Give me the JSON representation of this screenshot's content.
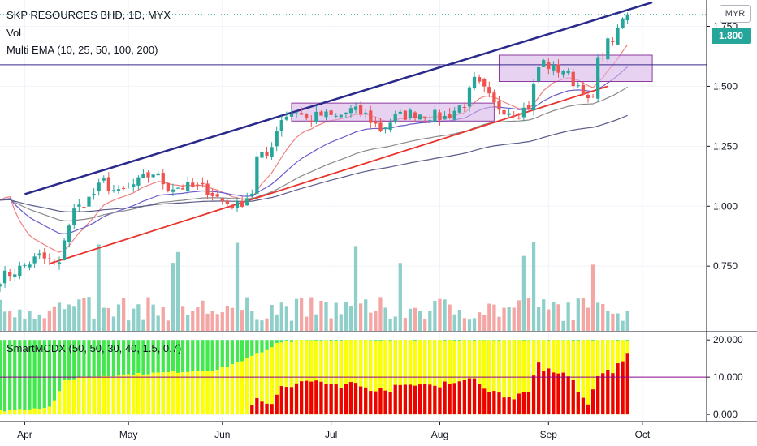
{
  "chart_title": "SKP RESOURCES BHD, 1D, MYX",
  "legend_vol": "Vol",
  "legend_ema": "Multi EMA (10, 25, 50, 100, 200)",
  "legend_indicator": "SmartMCDX (50, 50, 30, 40, 1.5, 0.7)",
  "currency": "MYR",
  "last_price_label": "1.800",
  "colors": {
    "up": "#26a69a",
    "down": "#ef5350",
    "vol_up": "#8fcfc9",
    "vol_down": "#f3a6a4",
    "ema10": "#f08080",
    "ema25": "#6a5acd",
    "ema50": "#8a8a8a",
    "ema100": "#5b5b8a",
    "ema200": "#5f6671",
    "trend_upper": "#2a2a8c",
    "trend_lower": "#e8342c",
    "hline": "#3a2a8c",
    "box_fill": "#d8b4e8",
    "box_border": "#8b3a9e",
    "mcdx_green": "#43e84f",
    "mcdx_yellow": "#ffff00",
    "mcdx_red": "#f00000",
    "mcdx_line": "#8b008b"
  },
  "chart_data": {
    "type": "candlestick",
    "price_axis": {
      "ticks": [
        "1.750",
        "1.500",
        "1.250",
        "1.000",
        "0.750"
      ],
      "values": [
        1.75,
        1.5,
        1.25,
        1.0,
        0.75
      ],
      "range": [
        0.48,
        1.86
      ]
    },
    "indicator_axis": {
      "ticks": [
        "20.000",
        "10.000",
        "0.000"
      ],
      "values": [
        20,
        10,
        0
      ],
      "range": [
        -1.5,
        22
      ]
    },
    "month_labels": [
      "Apr",
      "May",
      "Jun",
      "Jul",
      "Aug",
      "Sep",
      "Oct"
    ],
    "month_start_index": [
      5,
      26,
      45,
      67,
      89,
      111,
      130
    ],
    "x_index_range": [
      0,
      143
    ],
    "bar_count": 128,
    "anchors": [
      [
        0,
        0.7
      ],
      [
        4,
        0.74
      ],
      [
        8,
        0.79
      ],
      [
        12,
        0.75
      ],
      [
        13,
        0.87
      ],
      [
        15,
        0.98
      ],
      [
        18,
        1.03
      ],
      [
        21,
        1.1
      ],
      [
        24,
        1.05
      ],
      [
        28,
        1.1
      ],
      [
        31,
        1.14
      ],
      [
        34,
        1.08
      ],
      [
        38,
        1.08
      ],
      [
        42,
        1.07
      ],
      [
        45,
        1.02
      ],
      [
        48,
        1.0
      ],
      [
        51,
        1.06
      ],
      [
        52,
        1.2
      ],
      [
        54,
        1.21
      ],
      [
        57,
        1.37
      ],
      [
        60,
        1.4
      ],
      [
        62,
        1.36
      ],
      [
        65,
        1.38
      ],
      [
        68,
        1.37
      ],
      [
        71,
        1.4
      ],
      [
        74,
        1.38
      ],
      [
        77,
        1.32
      ],
      [
        80,
        1.37
      ],
      [
        84,
        1.39
      ],
      [
        87,
        1.38
      ],
      [
        90,
        1.37
      ],
      [
        94,
        1.43
      ],
      [
        96,
        1.52
      ],
      [
        98,
        1.48
      ],
      [
        100,
        1.42
      ],
      [
        103,
        1.4
      ],
      [
        105,
        1.39
      ],
      [
        107,
        1.42
      ],
      [
        109,
        1.58
      ],
      [
        110,
        1.6
      ],
      [
        112,
        1.57
      ],
      [
        114,
        1.57
      ],
      [
        116,
        1.52
      ],
      [
        118,
        1.49
      ],
      [
        119,
        1.43
      ],
      [
        120,
        1.45
      ],
      [
        121,
        1.6
      ],
      [
        123,
        1.68
      ],
      [
        124,
        1.7
      ],
      [
        125,
        1.72
      ],
      [
        126,
        1.78
      ],
      [
        127,
        1.8
      ]
    ],
    "last_close": 1.8,
    "mcdx": {
      "red_profile": [
        [
          0,
          0
        ],
        [
          50,
          0
        ],
        [
          52,
          4
        ],
        [
          55,
          3
        ],
        [
          57,
          7
        ],
        [
          60,
          8
        ],
        [
          64,
          9
        ],
        [
          68,
          8
        ],
        [
          72,
          8
        ],
        [
          76,
          7
        ],
        [
          80,
          7
        ],
        [
          84,
          8
        ],
        [
          88,
          8
        ],
        [
          92,
          9
        ],
        [
          96,
          9
        ],
        [
          100,
          6
        ],
        [
          104,
          5
        ],
        [
          107,
          6
        ],
        [
          109,
          13
        ],
        [
          112,
          12
        ],
        [
          114,
          11
        ],
        [
          116,
          10
        ],
        [
          118,
          4
        ],
        [
          119,
          2
        ],
        [
          121,
          11
        ],
        [
          124,
          12
        ],
        [
          126,
          14
        ],
        [
          127,
          16.5
        ]
      ],
      "yellow_top_profile": [
        [
          0,
          1
        ],
        [
          10,
          2
        ],
        [
          12,
          6
        ],
        [
          13,
          9
        ],
        [
          16,
          10
        ],
        [
          30,
          11
        ],
        [
          44,
          12
        ],
        [
          50,
          15
        ],
        [
          54,
          17.5
        ],
        [
          56,
          19
        ],
        [
          60,
          20
        ],
        [
          127,
          20
        ]
      ],
      "signal_level": 10
    },
    "trend_upper": {
      "from": [
        5,
        1.05
      ],
      "to": [
        132,
        1.85
      ]
    },
    "trend_lower": {
      "from": [
        10,
        0.76
      ],
      "to": [
        123,
        1.5
      ]
    },
    "resistance": 1.59,
    "boxes": [
      {
        "i0": 59,
        "i1": 100,
        "p0": 1.355,
        "p1": 1.43
      },
      {
        "i0": 101,
        "i1": 132,
        "p0": 1.52,
        "p1": 1.63
      }
    ]
  }
}
